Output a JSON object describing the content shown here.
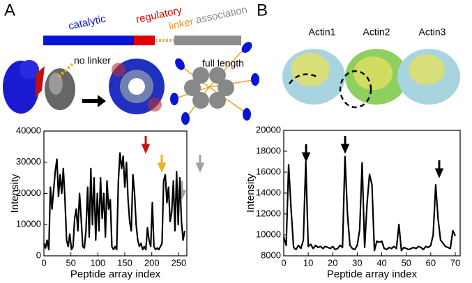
{
  "panel_labels": [
    "A",
    "B"
  ],
  "domain_diagram": {
    "segments": [
      "catalytic",
      "regulatory",
      "linker",
      "association"
    ],
    "no_linker": "no linker",
    "full_length": "full length"
  },
  "structure_labels": [
    "Actin1",
    "Actin2",
    "Actin3"
  ],
  "chart_data": [
    {
      "type": "line",
      "x_label": "Peptide array index",
      "y_label": "Intensity",
      "color": "#000000",
      "x": [
        0,
        3,
        6,
        9,
        12,
        15,
        18,
        21,
        24,
        27,
        30,
        33,
        36,
        39,
        42,
        45,
        48,
        51,
        54,
        57,
        60,
        63,
        66,
        69,
        72,
        75,
        78,
        81,
        84,
        87,
        90,
        93,
        96,
        99,
        102,
        105,
        108,
        111,
        114,
        117,
        120,
        123,
        126,
        129,
        132,
        135,
        138,
        141,
        144,
        147,
        150,
        153,
        156,
        159,
        162,
        165,
        168,
        171,
        174,
        177,
        180,
        183,
        186,
        189,
        192,
        195,
        198,
        201,
        204,
        207,
        210,
        213,
        216,
        219,
        222,
        225,
        228,
        231,
        234,
        237,
        240,
        243,
        246,
        249,
        252,
        255,
        258,
        261
      ],
      "values": [
        4000,
        2500,
        5000,
        2000,
        22000,
        15000,
        21000,
        27000,
        31000,
        19000,
        26000,
        20000,
        28000,
        18000,
        5000,
        3000,
        7000,
        2000,
        3000,
        12000,
        15000,
        8000,
        20000,
        12000,
        3000,
        2500,
        8000,
        22000,
        6000,
        28000,
        10000,
        25000,
        5000,
        20000,
        8000,
        25000,
        12000,
        20000,
        6000,
        24000,
        15000,
        18000,
        3000,
        2000,
        3000,
        2000,
        24000,
        33000,
        28000,
        32000,
        22000,
        30000,
        18000,
        11000,
        8000,
        26000,
        20000,
        10000,
        5000,
        3000,
        4000,
        2000,
        3000,
        2000,
        9000,
        5000,
        3000,
        17000,
        3000,
        2000,
        2500,
        2000,
        3000,
        4000,
        24000,
        26000,
        17000,
        22000,
        11000,
        14000,
        24000,
        8000,
        27000,
        10000,
        25000,
        11000,
        5000,
        8000
      ],
      "xlim": [
        0,
        265
      ],
      "xticks": [
        0,
        50,
        100,
        150,
        200,
        250
      ],
      "ylim": [
        0,
        40000
      ],
      "yticks": [
        0,
        10000,
        20000,
        30000,
        40000
      ]
    },
    {
      "type": "line",
      "x_label": "Peptide array index",
      "y_label": "Intensity",
      "color": "#000000",
      "x": [
        0,
        1,
        2,
        3,
        4,
        5,
        6,
        7,
        8,
        9,
        10,
        11,
        12,
        13,
        14,
        15,
        16,
        17,
        18,
        19,
        20,
        21,
        22,
        23,
        24,
        25,
        26,
        27,
        28,
        29,
        30,
        31,
        32,
        33,
        34,
        35,
        36,
        37,
        38,
        39,
        40,
        41,
        42,
        43,
        44,
        45,
        46,
        47,
        48,
        49,
        50,
        51,
        52,
        53,
        54,
        55,
        56,
        57,
        58,
        59,
        60,
        61,
        62,
        63,
        64,
        65,
        66,
        67,
        68,
        69,
        70
      ],
      "values": [
        9800,
        9000,
        16700,
        12500,
        8800,
        8600,
        9000,
        8700,
        9500,
        17000,
        8900,
        9100,
        8700,
        9000,
        8800,
        8900,
        8700,
        8900,
        8800,
        8700,
        8900,
        8600,
        8700,
        9000,
        8800,
        17500,
        12000,
        9000,
        8700,
        8600,
        9000,
        10500,
        16900,
        8800,
        13000,
        15800,
        14800,
        8500,
        9400,
        9300,
        9400,
        8700,
        8600,
        8800,
        8700,
        8900,
        8700,
        11000,
        8500,
        8800,
        8700,
        8600,
        8700,
        8800,
        8700,
        8900,
        8800,
        8600,
        8900,
        8800,
        9000,
        10000,
        14800,
        11500,
        9500,
        9200,
        8900,
        8800,
        8700,
        10400,
        9900
      ],
      "xlim": [
        0,
        72
      ],
      "xticks": [
        0,
        10,
        20,
        30,
        40,
        50,
        60,
        70
      ],
      "ylim": [
        8000,
        20000
      ],
      "yticks": [
        8000,
        10000,
        12000,
        14000,
        16000,
        18000,
        20000
      ]
    }
  ]
}
